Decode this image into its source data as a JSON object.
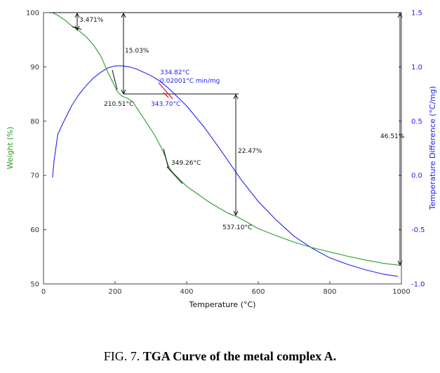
{
  "chart_data": {
    "type": "line",
    "xlabel": "Temperature (°C)",
    "ylabel_left": "Weight (%)",
    "ylabel_right": "Temperature Difference (°C/mg)",
    "xlim": [
      0,
      1000
    ],
    "ylim_left": [
      50,
      100
    ],
    "ylim_right": [
      -1.0,
      1.5
    ],
    "x_ticks": [
      0,
      200,
      400,
      600,
      800,
      1000
    ],
    "y_ticks_left": [
      50,
      60,
      70,
      80,
      90,
      100
    ],
    "y_ticks_right": [
      "-1.0",
      "-0.5",
      "0.0",
      "0.5",
      "1.0",
      "1.5"
    ],
    "y_tick_right_values": [
      -1.0,
      -0.5,
      0.0,
      0.5,
      1.0,
      1.5
    ],
    "series": [
      {
        "name": "Weight",
        "axis": "left",
        "color": "#2e9a2e",
        "x": [
          25,
          40,
          60,
          80,
          100,
          120,
          140,
          160,
          180,
          195,
          205,
          211,
          220,
          235,
          250,
          270,
          290,
          310,
          330,
          340,
          349,
          360,
          380,
          400,
          430,
          460,
          490,
          520,
          537,
          560,
          600,
          650,
          700,
          750,
          800,
          850,
          900,
          950,
          1000
        ],
        "y": [
          100,
          99.5,
          98.6,
          97.5,
          96.6,
          95.5,
          94,
          92,
          89,
          87,
          85.6,
          85.1,
          84.6,
          84.2,
          83.5,
          81.5,
          79.5,
          77.5,
          75,
          73.5,
          71.7,
          70.6,
          69.3,
          68,
          66.6,
          65.2,
          64,
          62.9,
          62.5,
          61.7,
          60.2,
          58.9,
          57.7,
          56.7,
          55.9,
          55.1,
          54.4,
          53.8,
          53.4
        ]
      },
      {
        "name": "Temperature Difference",
        "axis": "right",
        "color": "#2222ee",
        "x": [
          25,
          30,
          40,
          50,
          60,
          80,
          100,
          120,
          140,
          160,
          180,
          200,
          220,
          240,
          260,
          280,
          300,
          320,
          340,
          360,
          400,
          450,
          500,
          550,
          600,
          650,
          700,
          750,
          800,
          850,
          900,
          950,
          990
        ],
        "y": [
          -0.02,
          0.15,
          0.38,
          0.45,
          0.52,
          0.65,
          0.75,
          0.83,
          0.9,
          0.95,
          0.99,
          1.01,
          1.01,
          1.0,
          0.98,
          0.95,
          0.92,
          0.88,
          0.83,
          0.77,
          0.64,
          0.44,
          0.21,
          -0.03,
          -0.24,
          -0.41,
          -0.56,
          -0.67,
          -0.76,
          -0.82,
          -0.87,
          -0.91,
          -0.93
        ]
      }
    ],
    "annotations": {
      "a1_pct": "3.471%",
      "a2_pct": "15.03%",
      "t1": "210.51°C",
      "peak_temp": "334.82°C",
      "peak_rate": "0.02001°C min/mg",
      "t_red": "343.70°C",
      "t2": "349.26°C",
      "a3_pct": "22.47%",
      "t3": "537.10°C",
      "total_pct": "46.51%"
    }
  },
  "caption": {
    "prefix": "FIG. 7.",
    "title": "TGA Curve of the metal complex A."
  },
  "colors": {
    "weight": "#2e9a2e",
    "diff": "#2222ee",
    "marker_red": "#dd2222",
    "axis": "#444444"
  }
}
